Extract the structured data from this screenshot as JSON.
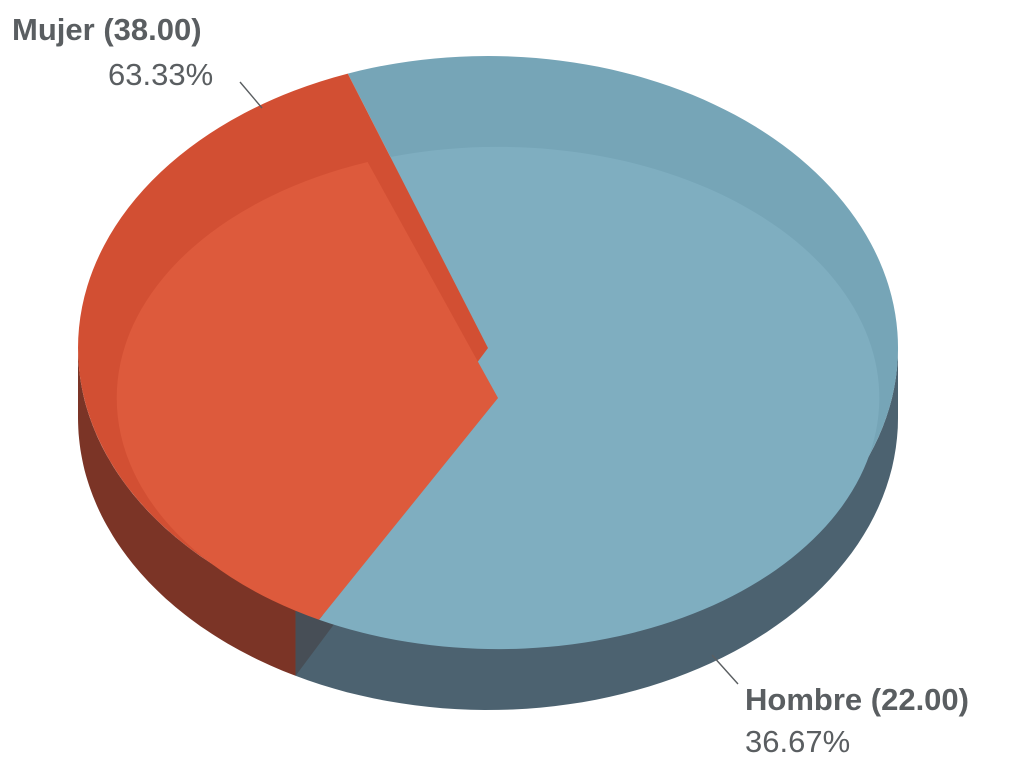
{
  "chart_data": {
    "type": "pie",
    "style": "3d",
    "slices": [
      {
        "label": "Mujer",
        "value": 38.0,
        "value_text": "(38.00)",
        "percent": 63.33,
        "percent_text": "63.33%",
        "color": "#7faec0",
        "side_color": "#4c6270",
        "rim_color": "#76a5b7"
      },
      {
        "label": "Hombre",
        "value": 22.0,
        "value_text": "(22.00)",
        "percent": 36.67,
        "percent_text": "36.67%",
        "color": "#dd5a3c",
        "side_color": "#7b3426",
        "rim_color": "#d24f33"
      }
    ],
    "start_angle_deg": 110,
    "legend": "none"
  }
}
